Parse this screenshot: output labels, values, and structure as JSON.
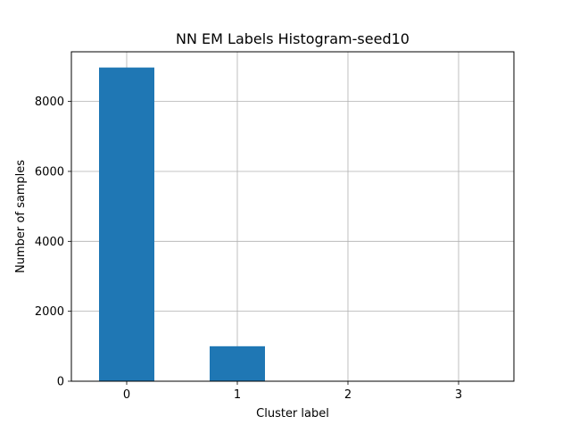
{
  "chart_data": {
    "type": "bar",
    "title": "NN EM Labels Histogram-seed10",
    "xlabel": "Cluster label",
    "ylabel": "Number of samples",
    "categories": [
      "0",
      "1",
      "2",
      "3"
    ],
    "values": [
      8970,
      1000,
      0,
      0
    ],
    "x_range": [
      -0.5,
      3.5
    ],
    "ylim": [
      0,
      9420
    ],
    "yticks": [
      0,
      2000,
      4000,
      6000,
      8000
    ],
    "ytick_labels": [
      "0",
      "2000",
      "4000",
      "6000",
      "8000"
    ],
    "grid": true,
    "legend": "none",
    "bar_color": "#1f77b4",
    "grid_color": "#b0b0b0"
  }
}
